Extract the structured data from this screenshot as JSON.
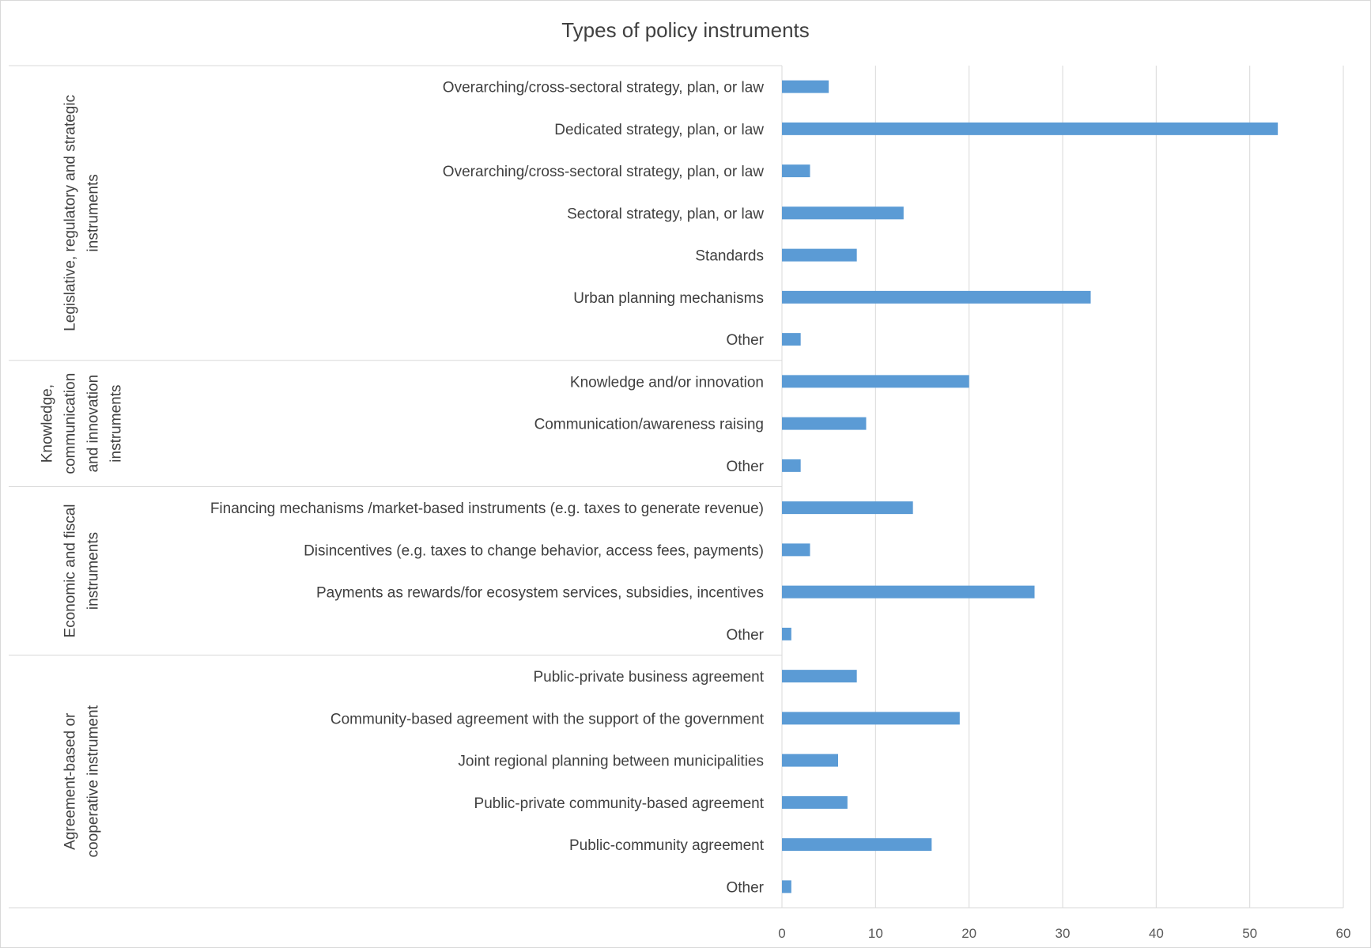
{
  "chart_data": {
    "type": "bar",
    "orientation": "horizontal",
    "title": "Types of policy instruments",
    "xlabel": "",
    "ylabel": "",
    "xlim": [
      0,
      60
    ],
    "xticks": [
      0,
      10,
      20,
      30,
      40,
      50,
      60
    ],
    "grid": "vertical",
    "legend": "none",
    "bar_color": "#5b9bd5",
    "groups": [
      {
        "label": "Legislative, regulatory and strategic instruments",
        "label_lines": [
          "Legislative, regulatory and strategic",
          "instruments"
        ],
        "categories": [
          "Overarching/cross-sectoral strategy, plan, or law",
          "Dedicated strategy, plan, or law",
          "Overarching/cross-sectoral strategy, plan, or law",
          "Sectoral strategy, plan, or law",
          "Standards",
          "Urban planning mechanisms",
          "Other"
        ],
        "values": [
          5,
          53,
          3,
          13,
          8,
          33,
          2
        ]
      },
      {
        "label": "Knowledge, communication and innovation instruments",
        "label_lines": [
          "Knowledge,",
          "communication",
          "and innovation",
          "instruments"
        ],
        "categories": [
          "Knowledge and/or innovation",
          "Communication/awareness raising",
          "Other"
        ],
        "values": [
          20,
          9,
          2
        ]
      },
      {
        "label": "Economic and fiscal instruments",
        "label_lines": [
          "Economic and fiscal",
          "instruments"
        ],
        "categories": [
          "Financing mechanisms /market-based instruments (e.g. taxes to generate revenue)",
          "Disincentives (e.g. taxes to change  behavior, access fees, payments)",
          "Payments as rewards/for ecosystem services, subsidies, incentives",
          "Other"
        ],
        "values": [
          14,
          3,
          27,
          1
        ]
      },
      {
        "label": "Agreement-based or cooperative instrument",
        "label_lines": [
          "Agreement-based or",
          "cooperative instrument"
        ],
        "categories": [
          "Public-private business agreement",
          "Community-based agreement with the support of the government",
          "Joint regional planning between municipalities",
          "Public-private community-based agreement",
          "Public-community agreement",
          "Other"
        ],
        "values": [
          8,
          19,
          6,
          7,
          16,
          1
        ]
      }
    ]
  }
}
